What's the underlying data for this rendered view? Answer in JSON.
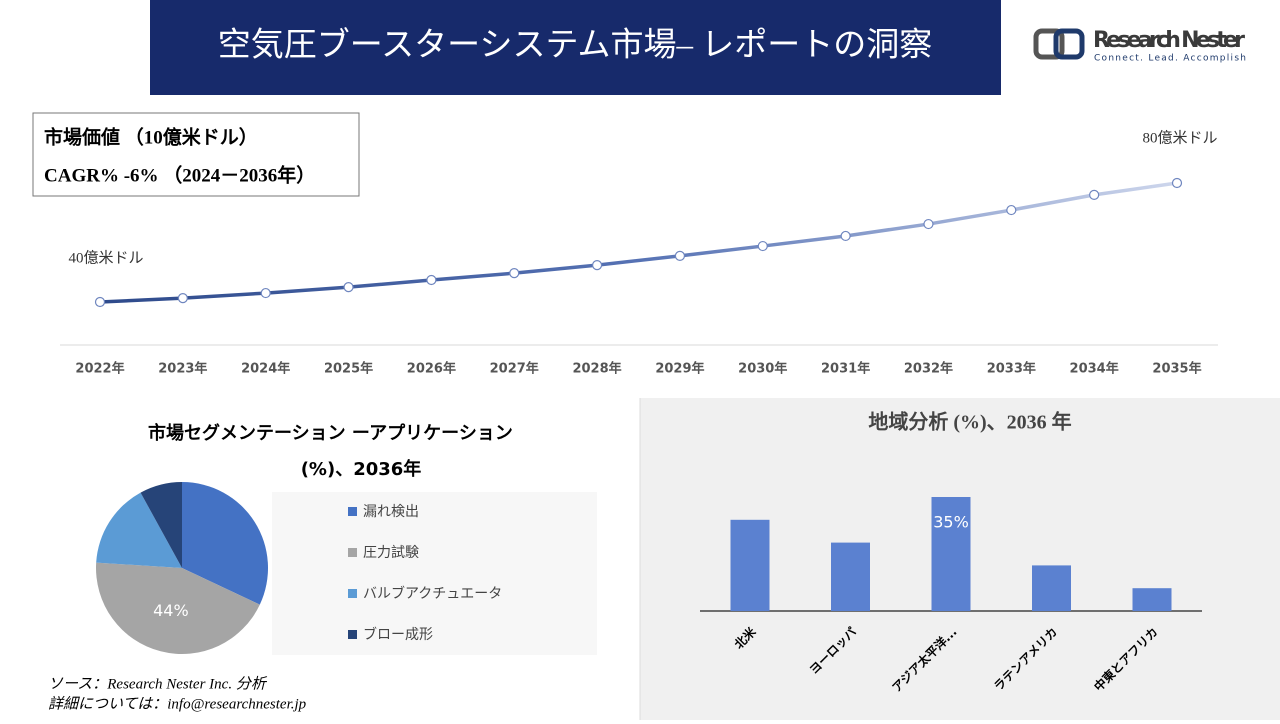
{
  "header": {
    "title": "空気圧ブースターシステム市場– レポートの洞察"
  },
  "logo": {
    "name": "Research Nester",
    "tagline": "Connect. Lead. Accomplish"
  },
  "summary": {
    "market_value": "市場価値 （10億米ドル）",
    "cagr": "CAGR% -6% （2024－2036年）"
  },
  "chart_data": [
    {
      "type": "line",
      "color": "#2e4a8b",
      "categories": [
        "2022年",
        "2023年",
        "2024年",
        "2025年",
        "2026年",
        "2027年",
        "2028年",
        "2029年",
        "2030年",
        "2031年",
        "2032年",
        "2033年",
        "2034年",
        "2035年"
      ],
      "values": [
        40,
        41.3,
        43,
        45,
        47.4,
        49.7,
        52.4,
        55.5,
        58.8,
        62.2,
        66.2,
        70.9,
        76,
        80
      ],
      "value_labels": [
        "40億米ドル",
        null,
        null,
        null,
        null,
        null,
        null,
        null,
        null,
        null,
        null,
        null,
        null,
        "80億米ドル"
      ]
    },
    {
      "type": "pie",
      "title": "市場セグメンテーション ーアプリケーション",
      "subtitle": "(%)、2036年",
      "categories": [
        "漏れ検出",
        "圧力試験",
        "バルブアクチュエータ",
        "ブロー成形"
      ],
      "values": [
        32,
        44,
        16,
        8
      ],
      "value_labels": [
        null,
        "44%",
        null,
        null
      ],
      "colors": [
        "#4472c4",
        "#a5a5a5",
        "#5b9bd5",
        "#264478"
      ]
    },
    {
      "type": "bar",
      "title": "地域分析 (%)、2036 年",
      "color": "#5b81d0",
      "categories": [
        "北米",
        "ヨーロッパ",
        "アジア太平洋...",
        "ラテンアメリカ",
        "中東とアフリカ"
      ],
      "values": [
        28,
        21,
        35,
        14,
        7
      ],
      "value_labels": [
        null,
        null,
        "35%",
        null,
        null
      ]
    }
  ],
  "source": {
    "line1": "ソース：Research Nester Inc. 分析",
    "line2": "詳細については：info@researchnester.jp"
  }
}
